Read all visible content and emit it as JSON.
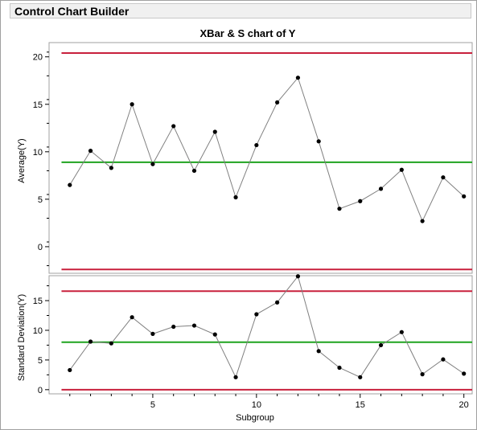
{
  "window": {
    "title": "Control Chart Builder"
  },
  "chart_data": [
    {
      "type": "line",
      "title": "XBar & S chart of Y",
      "xlabel": "",
      "ylabel": "Average(Y)",
      "x": [
        1,
        2,
        3,
        4,
        5,
        6,
        7,
        8,
        9,
        10,
        11,
        12,
        13,
        14,
        15,
        16,
        17,
        18,
        19,
        20
      ],
      "values": [
        6.5,
        10.1,
        8.3,
        15.0,
        8.7,
        12.7,
        8.0,
        12.1,
        5.2,
        10.7,
        15.2,
        17.8,
        11.1,
        4.0,
        4.8,
        6.1,
        8.1,
        2.7,
        7.3,
        5.3
      ],
      "ucl": 20.4,
      "center": 8.9,
      "lcl": -2.4,
      "ylim": [
        -2.8,
        21.5
      ],
      "yticks": [
        "20",
        "15",
        "10",
        "5",
        "0"
      ],
      "grid": false,
      "colors": {
        "points": "#000000",
        "line": "#808080",
        "limits": "#c8203c",
        "center": "#1fa31f"
      }
    },
    {
      "type": "line",
      "title": "",
      "xlabel": "Subgroup",
      "ylabel": "Standard Deviation(Y)",
      "x": [
        1,
        2,
        3,
        4,
        5,
        6,
        7,
        8,
        9,
        10,
        11,
        12,
        13,
        14,
        15,
        16,
        17,
        18,
        19,
        20
      ],
      "values": [
        3.3,
        8.1,
        7.8,
        12.2,
        9.4,
        10.6,
        10.8,
        9.3,
        2.1,
        12.7,
        14.7,
        19.1,
        6.5,
        3.7,
        2.1,
        7.5,
        9.7,
        2.6,
        5.1,
        2.7
      ],
      "ucl": 16.6,
      "center": 8.0,
      "lcl": 0,
      "ylim": [
        -0.7,
        19.2
      ],
      "yticks": [
        "15",
        "10",
        "5",
        "0"
      ],
      "xticks": [
        "5",
        "10",
        "15",
        "20"
      ],
      "xlim": [
        0,
        20.4
      ],
      "grid": false,
      "colors": {
        "points": "#000000",
        "line": "#808080",
        "limits": "#c8203c",
        "center": "#1fa31f"
      }
    }
  ]
}
